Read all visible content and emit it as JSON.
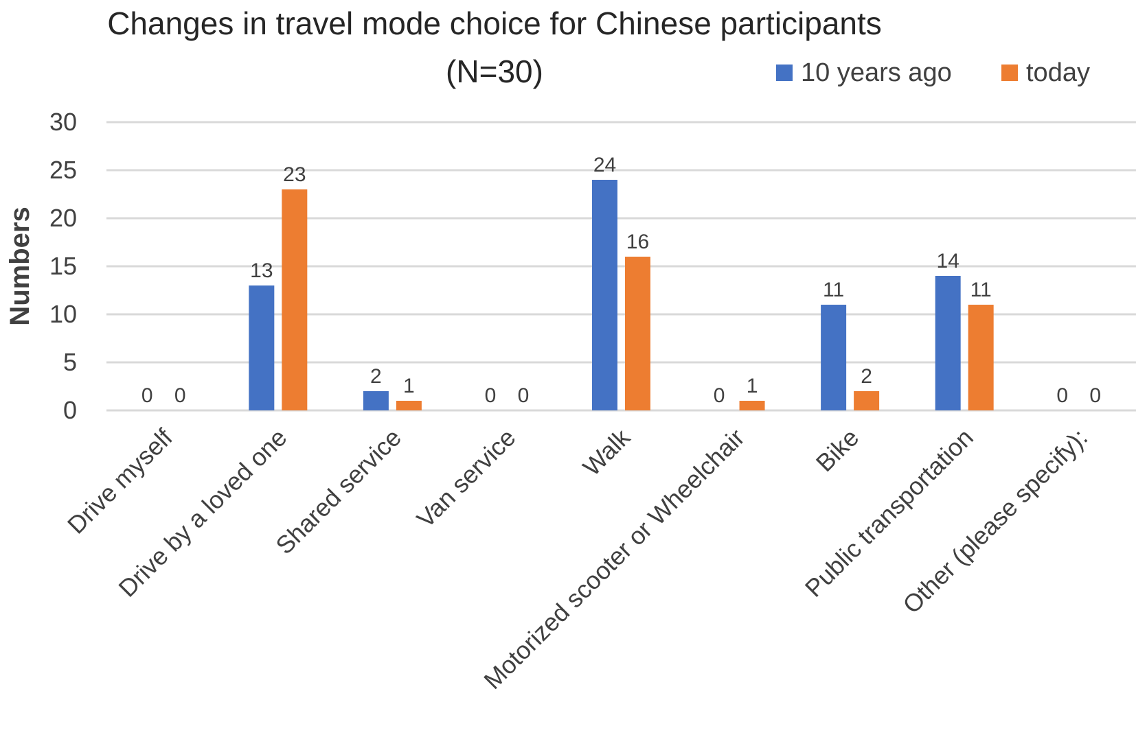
{
  "chart_data": {
    "type": "bar",
    "title": "Changes in travel mode choice for Chinese participants",
    "subtitle": "(N=30)",
    "ylabel": "Numbers",
    "xlabel": "",
    "ylim": [
      0,
      30
    ],
    "yticks": [
      0,
      5,
      10,
      15,
      20,
      25,
      30
    ],
    "grid": true,
    "legend_position": "top-right",
    "categories": [
      "Drive myself",
      "Drive by a loved one",
      "Shared service",
      "Van service",
      "Walk",
      "Motorized scooter or Wheelchair",
      "Bike",
      "Public transportation",
      "Other (please specify):"
    ],
    "series": [
      {
        "name": "10 years ago",
        "color": "#4472c4",
        "values": [
          0,
          13,
          2,
          0,
          24,
          0,
          11,
          14,
          0
        ]
      },
      {
        "name": "today",
        "color": "#ed7d31",
        "values": [
          0,
          23,
          1,
          0,
          16,
          1,
          2,
          11,
          0
        ]
      }
    ]
  }
}
